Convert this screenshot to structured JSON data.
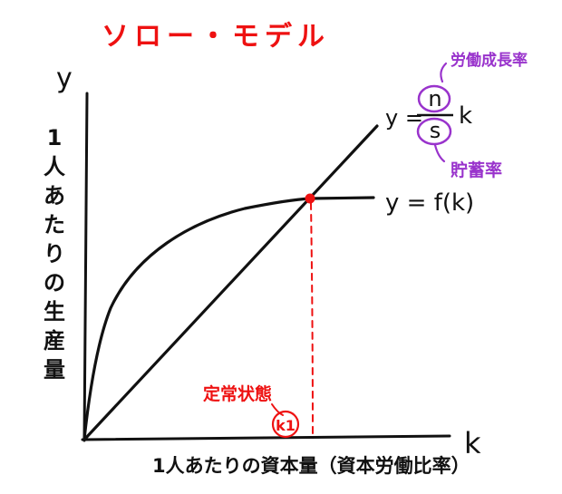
{
  "title": "ソロー・モデル",
  "axes": {
    "y_symbol": "y",
    "x_symbol": "k",
    "y_label_chars": [
      "1",
      "人",
      "あ",
      "た",
      "り",
      "の",
      "生",
      "産",
      "量"
    ],
    "x_label": "1人あたりの資本量（資本労働比率）"
  },
  "curves": {
    "production_label": "y = f(k)",
    "line_label_prefix": "y =",
    "line_numerator": "n",
    "line_denominator": "s",
    "line_suffix": "k"
  },
  "annotations": {
    "numerator_note": "労働成長率",
    "denominator_note": "貯蓄率",
    "steady_state_label": "定常状態",
    "steady_state_value": "k1"
  },
  "colors": {
    "ink": "#111111",
    "accent_red": "#ee1111",
    "accent_purple": "#9933cc"
  }
}
